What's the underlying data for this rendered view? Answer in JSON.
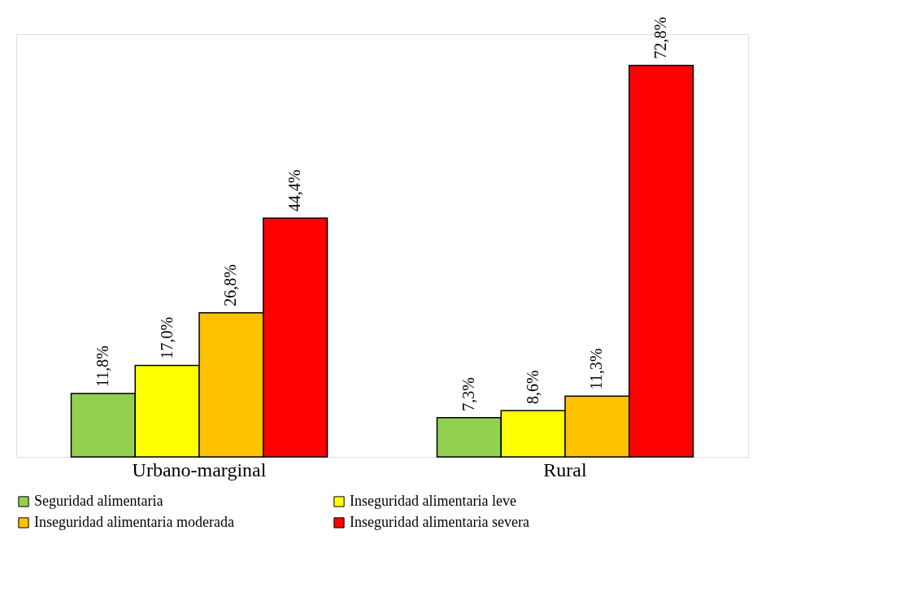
{
  "chart_data": {
    "type": "bar",
    "categories": [
      "Urbano-marginal",
      "Rural"
    ],
    "series": [
      {
        "name": "Seguridad alimentaria",
        "color": "#92d050",
        "values": [
          11.8,
          7.3
        ],
        "value_labels": [
          "11,8%",
          "7,3%"
        ]
      },
      {
        "name": "Inseguridad alimentaria leve",
        "color": "#ffff00",
        "values": [
          17.0,
          8.6
        ],
        "value_labels": [
          "17,0%",
          "8,6%"
        ]
      },
      {
        "name": "Inseguridad alimentaria moderada",
        "color": "#ffc000",
        "values": [
          26.8,
          11.3
        ],
        "value_labels": [
          "26,8%",
          "11,3%"
        ]
      },
      {
        "name": "Inseguridad alimentaria severa",
        "color": "#ff0000",
        "values": [
          44.4,
          72.8
        ],
        "value_labels": [
          "44,4%",
          "72,8%"
        ]
      }
    ],
    "legend": "bottom",
    "grid": false
  }
}
